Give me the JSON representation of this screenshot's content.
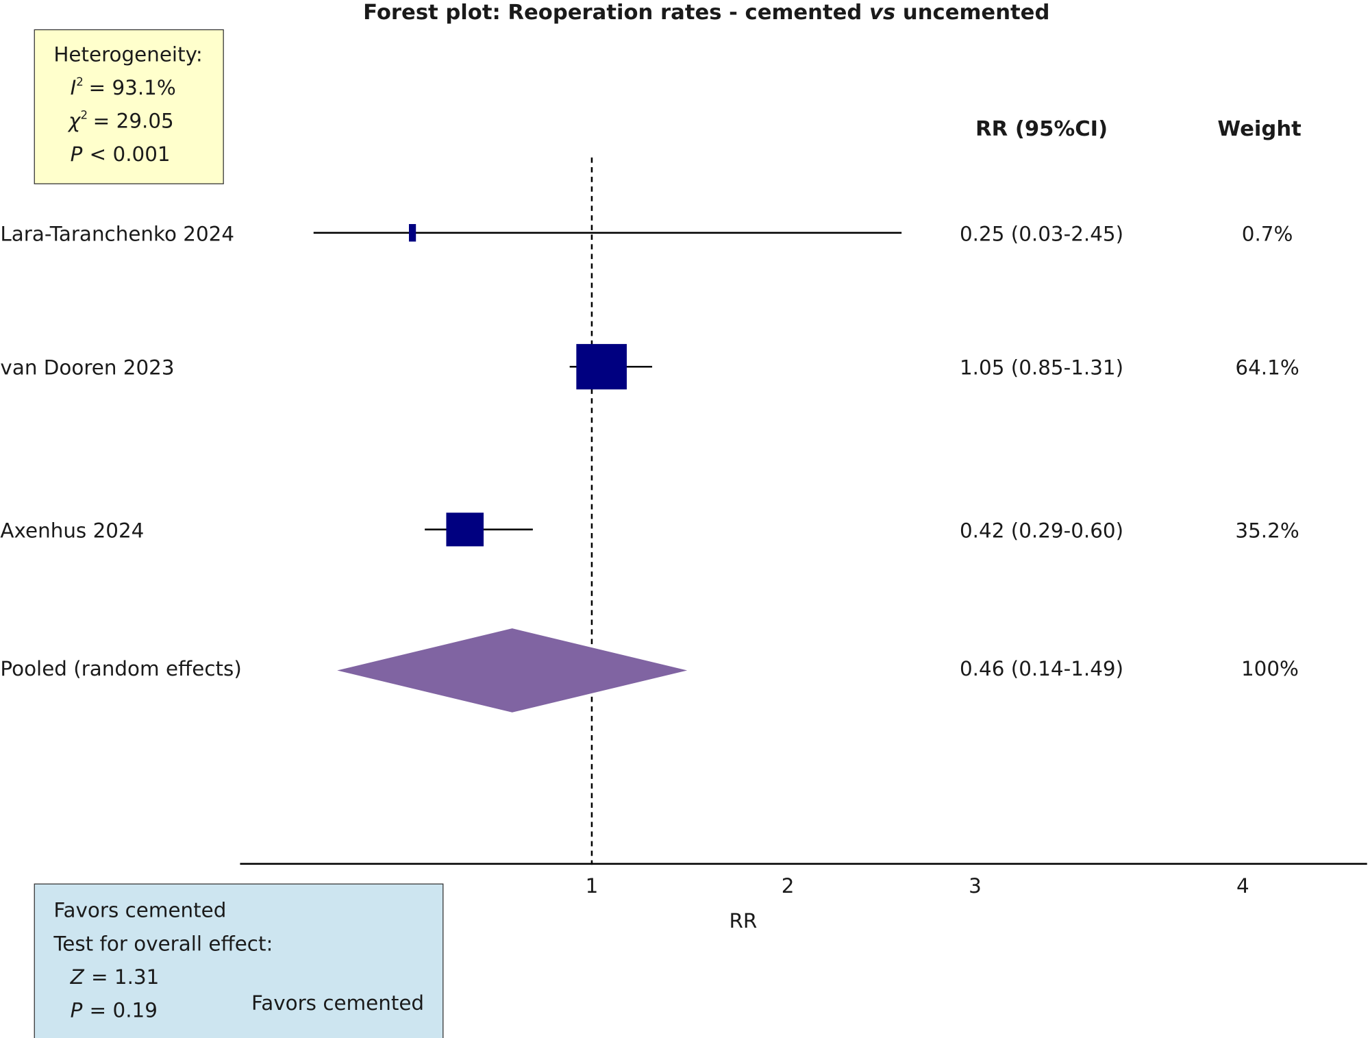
{
  "chart_data": {
    "type": "forest",
    "title_parts": [
      "Forest plot: Reoperation rates - cemented ",
      "vs",
      " uncemented"
    ],
    "columns": {
      "estimate": "RR (95%CI)",
      "weight": "Weight"
    },
    "studies": [
      {
        "label": "Lara-Taranchenko 2024",
        "rr": 0.25,
        "lo": 0.03,
        "hi": 2.45,
        "text": "0.25 (0.03-2.45)",
        "weight": 0.7,
        "weight_text": "0.7%"
      },
      {
        "label": "van Dooren 2023",
        "rr": 1.05,
        "lo": 0.85,
        "hi": 1.31,
        "text": "1.05 (0.85-1.31)",
        "weight": 64.1,
        "weight_text": "64.1%"
      },
      {
        "label": "Axenhus 2024",
        "rr": 0.42,
        "lo": 0.29,
        "hi": 0.6,
        "text": "0.42 (0.29-0.60)",
        "weight": 35.2,
        "weight_text": "35.2%"
      }
    ],
    "pooled": {
      "label": "Pooled (random effects)",
      "rr": 0.46,
      "lo": 0.14,
      "hi": 1.49,
      "text": "0.46 (0.14-1.49)",
      "weight_text": "100%"
    },
    "reference_line": 1,
    "xticks": [
      "1",
      "2",
      "3",
      "4"
    ],
    "xlabel": "RR",
    "heterogeneity": {
      "title": "Heterogeneity:",
      "i2_symbol": "I",
      "i2_sup": "2",
      "i2_value": "= 93.1%",
      "chi2_symbol": "χ",
      "chi2_sup": "2",
      "chi2_value": "= 29.05",
      "p_symbol": "P",
      "p_value": "< 0.001"
    },
    "overall_effect": {
      "favors_top": "Favors cemented",
      "title": "Test for overall effect:",
      "z_symbol": "Z",
      "z_value": "= 1.31",
      "p_symbol": "P",
      "p_value": "= 0.19",
      "favors_bottom": "Favors cemented"
    },
    "colors": {
      "study_marker": "#000080",
      "pooled_diamond": "#8064a2",
      "heterogeneity_box": "#ffffcc",
      "overall_box": "#cde5f0"
    }
  }
}
